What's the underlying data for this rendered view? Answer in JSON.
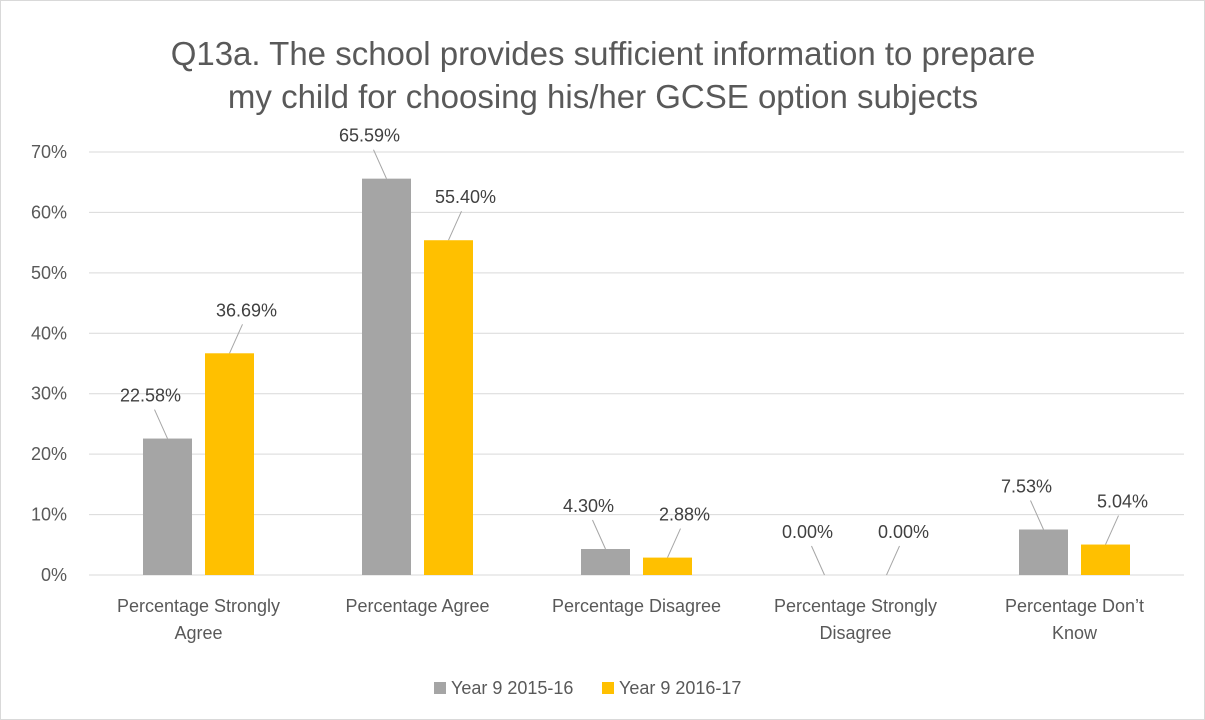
{
  "chart_data": {
    "type": "bar",
    "title_lines": [
      "Q13a. The school provides sufficient information to prepare",
      "my child for choosing his/her GCSE option subjects"
    ],
    "categories": [
      [
        "Percentage Strongly",
        "Agree"
      ],
      [
        "Percentage Agree"
      ],
      [
        "Percentage Disagree"
      ],
      [
        "Percentage Strongly",
        "Disagree"
      ],
      [
        "Percentage Don’t",
        "Know"
      ]
    ],
    "series": [
      {
        "name": "Year 9 2015-16",
        "color": "#a5a5a5",
        "values": [
          22.58,
          65.59,
          4.3,
          0.0,
          7.53
        ],
        "labels": [
          "22.58%",
          "65.59%",
          "4.30%",
          "0.00%",
          "7.53%"
        ]
      },
      {
        "name": "Year 9 2016-17",
        "color": "#ffc000",
        "values": [
          36.69,
          55.4,
          2.88,
          0.0,
          5.04
        ],
        "labels": [
          "36.69%",
          "55.40%",
          "2.88%",
          "0.00%",
          "5.04%"
        ]
      }
    ],
    "ylim": [
      0,
      70
    ],
    "yticks": [
      0,
      10,
      20,
      30,
      40,
      50,
      60,
      70
    ],
    "ytick_labels": [
      "0%",
      "10%",
      "20%",
      "30%",
      "40%",
      "50%",
      "60%",
      "70%"
    ],
    "grid": true,
    "legend_position": "bottom"
  }
}
